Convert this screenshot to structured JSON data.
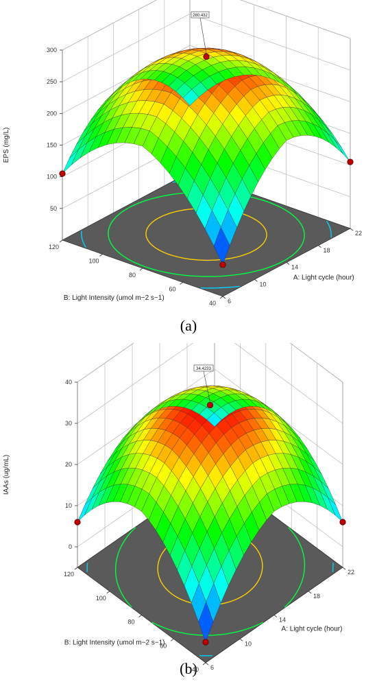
{
  "chart_data": [
    {
      "type": "surface3d",
      "panel_label": "a",
      "zlabel": "EPS (mg/L)",
      "xlabel": "A: Light cycle (hour)",
      "ylabel": "B: Light Intensity (umol m−2 s−1)",
      "x_ticks": [
        6,
        10,
        14,
        18,
        22
      ],
      "y_ticks": [
        40,
        60,
        80,
        100,
        120
      ],
      "z_ticks": [
        50,
        100,
        150,
        200,
        250,
        300
      ],
      "zlim": [
        0,
        300
      ],
      "xlim": [
        6,
        22
      ],
      "ylim": [
        40,
        120
      ],
      "peak_label": "280.432",
      "peak_value": 280.432,
      "corner_values": {
        "x6_y40": 50,
        "x22_y40": 105,
        "x6_y120": 105,
        "x22_y120": 105
      },
      "contour_levels": [
        150,
        200,
        250
      ],
      "design_points": [
        {
          "x": 14,
          "y": 80,
          "z": 280.432
        },
        {
          "x": 6,
          "y": 120,
          "z": 105
        },
        {
          "x": 22,
          "y": 40,
          "z": 105
        },
        {
          "x": 6,
          "y": 40,
          "z": 50
        }
      ],
      "colormap": [
        "#0000ff",
        "#00ffff",
        "#00ff00",
        "#ffff00",
        "#ff0000"
      ]
    },
    {
      "type": "surface3d",
      "panel_label": "b",
      "zlabel": "IAAs (ug/mL)",
      "xlabel": "A: Light cycle (hour)",
      "ylabel": "B: Light Intensity (umol m−2 s−1)",
      "x_ticks": [
        6,
        10,
        14,
        18,
        22
      ],
      "y_ticks": [
        40,
        60,
        80,
        100,
        120
      ],
      "z_ticks": [
        0,
        10,
        20,
        30,
        40
      ],
      "zlim": [
        -5,
        40
      ],
      "xlim": [
        6,
        22
      ],
      "ylim": [
        40,
        120
      ],
      "peak_label": "34.4233",
      "peak_value": 34.4233,
      "corner_values": {
        "x6_y40": 0,
        "x22_y40": 6,
        "x6_y120": 6,
        "x22_y120": 6
      },
      "contour_levels": [
        10,
        20,
        30
      ],
      "design_points": [
        {
          "x": 14,
          "y": 80,
          "z": 34.4233
        },
        {
          "x": 6,
          "y": 120,
          "z": 6
        },
        {
          "x": 22,
          "y": 40,
          "z": 6
        },
        {
          "x": 6,
          "y": 40,
          "z": 0
        }
      ],
      "colormap": [
        "#0000ff",
        "#00ffff",
        "#00ff00",
        "#ffff00",
        "#ff0000"
      ]
    }
  ],
  "captions": {
    "a": "(a)",
    "b": "(b)"
  }
}
